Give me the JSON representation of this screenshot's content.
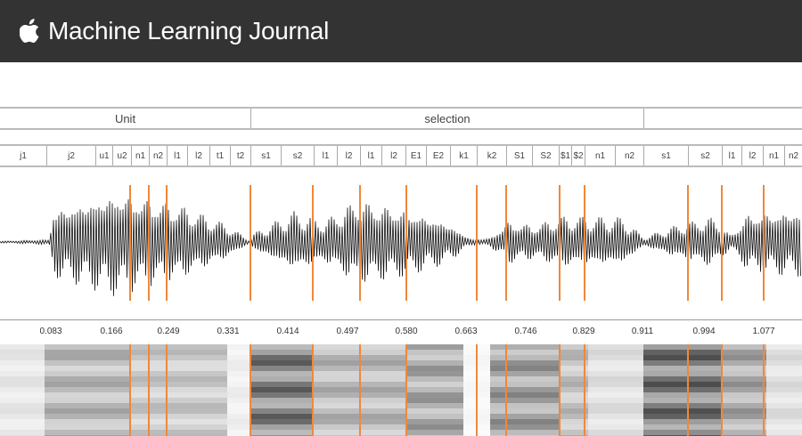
{
  "header": {
    "title": "Machine Learning Journal",
    "logo": "apple-logo"
  },
  "figure": {
    "units": [
      {
        "label": "Unit",
        "from": 0,
        "to": 281
      },
      {
        "label": "selection",
        "from": 281,
        "to": 722
      },
      {
        "label": "",
        "from": 722,
        "to": 900
      }
    ],
    "phones": [
      "j1",
      "j2",
      "u1",
      "u2",
      "n1",
      "n2",
      "l1",
      "l2",
      "t1",
      "t2",
      "s1",
      "s2",
      "l1",
      "l2",
      "l1",
      "l2",
      "E1",
      "E2",
      "k1",
      "k2",
      "S1",
      "S2",
      "$1",
      "$2",
      "n1",
      "n2",
      "s1",
      "s2",
      "l1",
      "l2",
      "n1",
      "n2"
    ],
    "time_ticks": [
      "0.083",
      "0.166",
      "0.249",
      "0.331",
      "0.414",
      "0.497",
      "0.580",
      "0.663",
      "0.746",
      "0.829",
      "0.911",
      "0.994",
      "1.077"
    ],
    "boundary_color": "#f0883a"
  }
}
